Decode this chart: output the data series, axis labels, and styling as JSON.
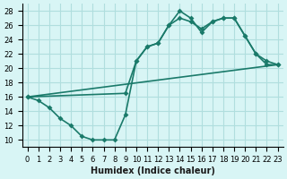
{
  "xlabel": "Humidex (Indice chaleur)",
  "ylabel": "",
  "bg_color": "#d8f5f5",
  "grid_color": "#b0dede",
  "line_color": "#1a7a6a",
  "xlim": [
    -0.5,
    23.5
  ],
  "ylim": [
    9,
    29
  ],
  "xticks": [
    0,
    1,
    2,
    3,
    4,
    5,
    6,
    7,
    8,
    9,
    10,
    11,
    12,
    13,
    14,
    15,
    16,
    17,
    18,
    19,
    20,
    21,
    22,
    23
  ],
  "yticks": [
    10,
    12,
    14,
    16,
    18,
    20,
    22,
    24,
    26,
    28
  ],
  "line1_x": [
    0,
    1,
    2,
    3,
    4,
    5,
    6,
    7,
    8,
    9,
    10,
    11,
    12,
    13,
    14,
    15,
    16,
    17,
    18,
    19,
    20,
    21,
    22,
    23
  ],
  "line1_y": [
    16,
    15.5,
    14.5,
    13,
    12,
    10.5,
    10,
    10,
    10,
    13.5,
    21,
    23,
    23.5,
    26,
    28,
    27,
    25,
    26.5,
    27,
    27,
    24.5,
    22,
    20.5,
    20.5
  ],
  "line2_x": [
    0,
    9,
    10,
    11,
    12,
    13,
    14,
    15,
    16,
    17,
    18,
    19,
    20,
    21,
    22,
    23
  ],
  "line2_y": [
    16,
    16.5,
    21,
    23,
    23.5,
    26,
    27,
    26.5,
    25.5,
    26.5,
    27,
    27,
    24.5,
    22,
    21,
    20.5
  ],
  "line3_x": [
    0,
    23
  ],
  "line3_y": [
    16,
    20.5
  ],
  "marker_size": 3,
  "line_width": 1.2
}
